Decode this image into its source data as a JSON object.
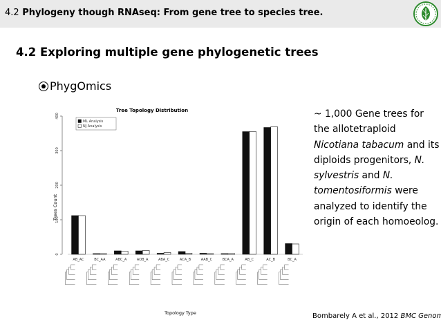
{
  "header": {
    "section_number": "4.2",
    "title": "Phylogeny though RNAseq: From gene tree to species tree."
  },
  "heading": "4.2 Exploring multiple gene phylogenetic trees",
  "bullet": "PhygOmics",
  "description": {
    "p1": "~ 1,000 Gene trees for the allotetraploid ",
    "species1": "Nicotiana tabacum",
    "p2": " and its diploids progenitors, ",
    "species2": "N. sylvestris",
    "p3": " and ",
    "species3": "N. tomentosiformis",
    "p4": " were analyzed to identify the origin of each homoeolog."
  },
  "citation": {
    "authors": "Bombarely A et al., 2012 ",
    "journal": "BMC Genomics"
  },
  "colors": {
    "header_bg": "#eaeaea",
    "logo_green": "#2e8b2e"
  },
  "logo_icon": "leaf-logo-icon",
  "chart_data": {
    "type": "bar",
    "title": "Tree Topology Distribution",
    "xlabel": "Topology Type",
    "ylabel": "Trees Count",
    "ylim": [
      0,
      400
    ],
    "yticks": [
      0,
      100,
      200,
      300,
      400
    ],
    "categories": [
      "AB_AC",
      "BC_AA",
      "ABC_A",
      "AOB_A",
      "ABA_C",
      "ACA_B",
      "AAB_C",
      "BCA_A",
      "AB_C",
      "AC_B",
      "BC_A"
    ],
    "series": [
      {
        "name": "ML Analysis",
        "values": [
          112,
          2,
          10,
          10,
          3,
          8,
          3,
          2,
          355,
          367,
          31
        ]
      },
      {
        "name": "NJ Analysis",
        "values": [
          112,
          2,
          9,
          11,
          5,
          3,
          2,
          2,
          355,
          369,
          30
        ]
      }
    ],
    "legend": "top-left",
    "grid": false
  }
}
